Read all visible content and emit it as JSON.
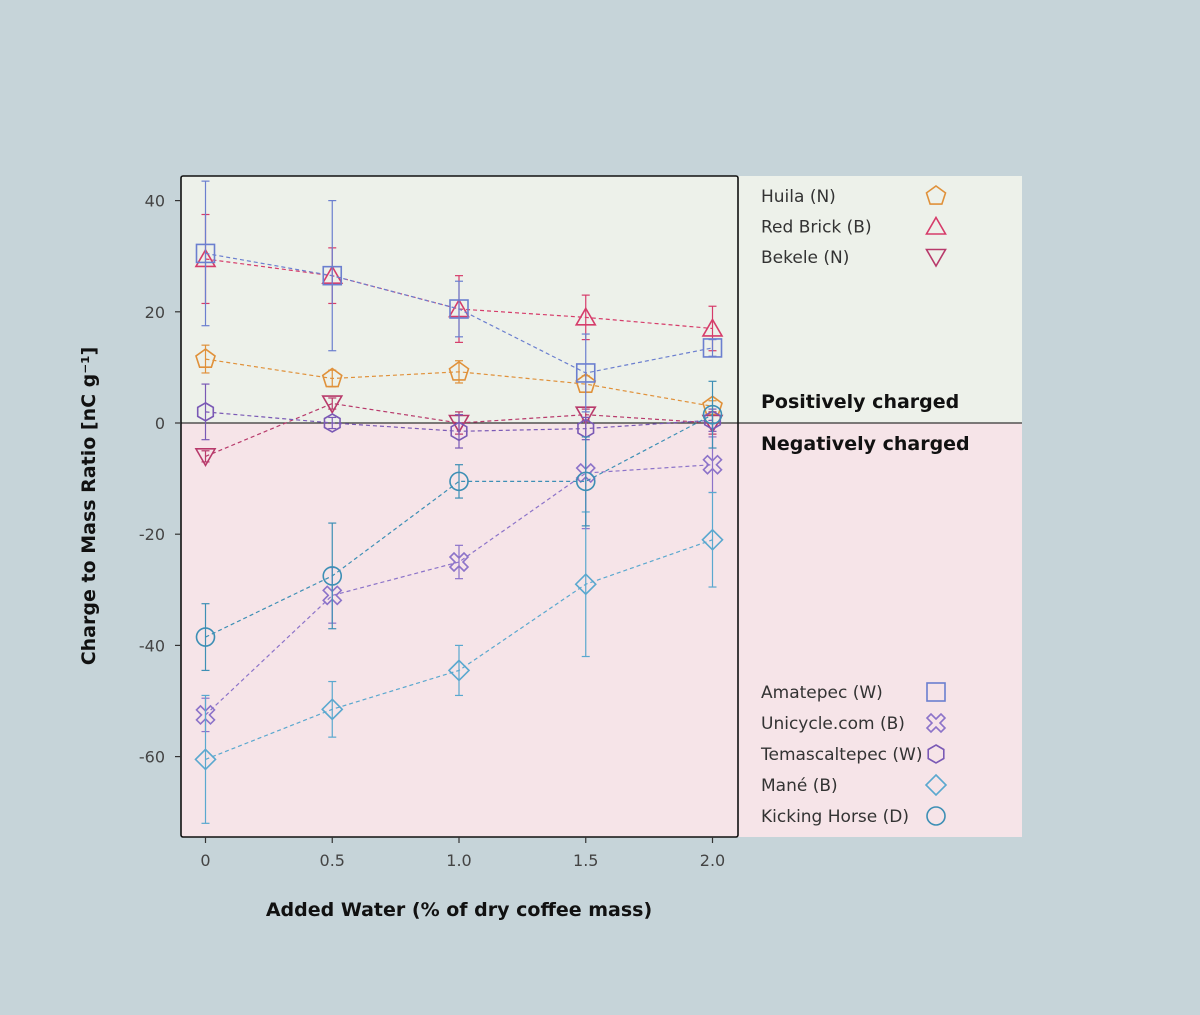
{
  "chart_data": {
    "type": "scatter",
    "xlabel": "Added Water (% of dry coffee mass)",
    "ylabel": "Charge to Mass Ratio [nC g⁻¹]",
    "x": [
      0,
      0.5,
      1.0,
      1.5,
      2.0
    ],
    "x_tick_labels": [
      "0",
      "0.5",
      "1.0",
      "1.5",
      "2.0"
    ],
    "y_ticks": [
      40,
      20,
      0,
      -20,
      -40,
      -60
    ],
    "xlim": [
      -0.1,
      2.1
    ],
    "ylim": [
      -74,
      44
    ],
    "grid": false,
    "region_labels": {
      "positive": "Positively charged",
      "negative": "Negatively charged"
    },
    "colors": {
      "page_background": "#c6d4d9",
      "positive_region": "#edf1ea",
      "negative_region": "#f6e4e8"
    },
    "series": [
      {
        "name": "Huila (N)",
        "marker": "pentagon",
        "color": "#e0913a",
        "group": "positive",
        "y": [
          11.5,
          8,
          9.2,
          7,
          3
        ],
        "err": [
          2.5,
          1.5,
          2,
          1.5,
          1
        ]
      },
      {
        "name": "Red Brick (B)",
        "marker": "triangle-up",
        "color": "#d63c6a",
        "group": "positive",
        "y": [
          29.5,
          26.5,
          20.5,
          19,
          17
        ],
        "err": [
          8,
          5,
          6,
          4,
          4
        ]
      },
      {
        "name": "Bekele (N)",
        "marker": "triangle-down",
        "color": "#b83a6b",
        "group": "positive",
        "y": [
          -6,
          3.5,
          0,
          1.5,
          0
        ],
        "err": [
          1,
          1,
          2,
          1,
          2
        ]
      },
      {
        "name": "Amatepec (W)",
        "marker": "square",
        "color": "#6b7fcf",
        "group": "negative",
        "y": [
          30.5,
          26.5,
          20.5,
          9,
          13.5
        ],
        "err": [
          13,
          13.5,
          5,
          7,
          1.5
        ]
      },
      {
        "name": "Unicycle.com (B)",
        "marker": "cross",
        "color": "#8c73c9",
        "group": "negative",
        "y": [
          -52.5,
          -31,
          -25,
          -9,
          -7.5
        ],
        "err": [
          3,
          5,
          3,
          10,
          5
        ]
      },
      {
        "name": "Temascaltepec (W)",
        "marker": "hexagon",
        "color": "#7a59b5",
        "group": "negative",
        "y": [
          2,
          0,
          -1.5,
          -1,
          0.5
        ],
        "err": [
          5,
          1,
          3,
          2,
          2
        ]
      },
      {
        "name": "Mané (B)",
        "marker": "diamond",
        "color": "#5aa8cf",
        "group": "negative",
        "y": [
          -60.5,
          -51.5,
          -44.5,
          -29,
          -21
        ],
        "err": [
          11.5,
          5,
          4.5,
          13,
          8.5
        ]
      },
      {
        "name": "Kicking Horse (D)",
        "marker": "circle",
        "color": "#3d8fb5",
        "group": "negative",
        "y": [
          -38.5,
          -27.5,
          -10.5,
          -10.5,
          1.5
        ],
        "err": [
          6,
          9.5,
          3,
          8,
          6
        ]
      }
    ]
  }
}
